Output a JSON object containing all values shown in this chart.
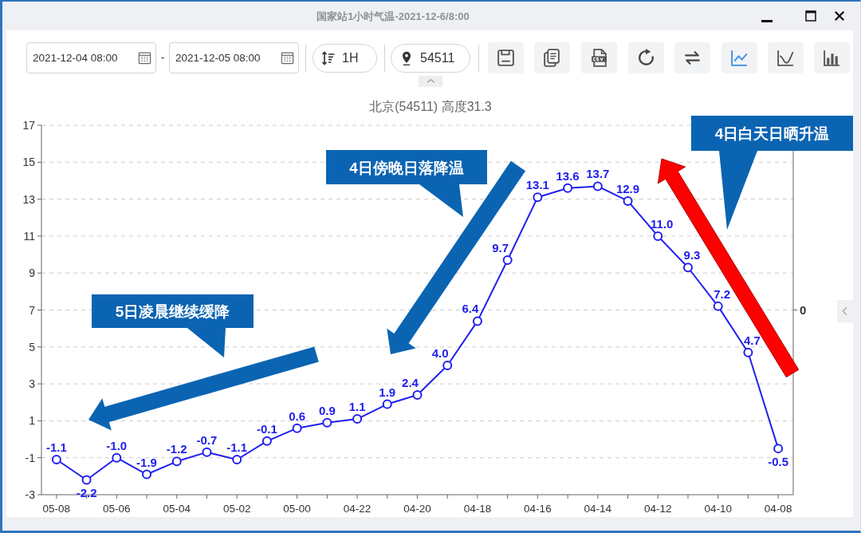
{
  "chart_data": {
    "type": "line",
    "title": "北京(54511) 高度31.3",
    "categories": [
      "05-08",
      null,
      "05-06",
      null,
      "05-04",
      null,
      "05-02",
      null,
      "05-00",
      null,
      "04-22",
      null,
      "04-20",
      null,
      "04-18",
      null,
      "04-16",
      null,
      "04-14",
      null,
      "04-12",
      null,
      "04-10",
      null,
      "04-08"
    ],
    "series": [
      {
        "color": "#2020ee",
        "values": [
          -1.1,
          -2.2,
          -1.0,
          -1.9,
          -1.2,
          -0.7,
          -1.1,
          -0.1,
          0.6,
          0.9,
          1.1,
          1.9,
          2.4,
          4.0,
          6.4,
          9.7,
          13.1,
          13.6,
          13.7,
          12.9,
          11.0,
          9.3,
          7.2,
          4.7,
          -0.5
        ],
        "value_labels": [
          "-1.1",
          "-2.2",
          "-1.0",
          "-1.9",
          "-1.2",
          "-0.7",
          "-1.1",
          "-0.1",
          "0.6",
          "0.9",
          "1.1",
          "1.9",
          "2.4",
          "4.0",
          "6.4",
          "9.7",
          "13.1",
          "13.6",
          "13.7",
          "12.9",
          "11.0",
          "9.3",
          "7.2",
          "4.7",
          "-0.5"
        ]
      }
    ],
    "ylim": [
      -3,
      17
    ],
    "yticks": [
      -3,
      -1,
      1,
      3,
      5,
      7,
      9,
      11,
      13,
      15,
      17
    ],
    "grid": "y",
    "marker": "circle",
    "line_style": "solid",
    "annotations": [
      "4日白天日晒升温",
      "4日傍晚日落降温",
      "5日凌晨继续缓降",
      "国家站1小时气温-2021-12-6/8:00",
      "2021-12-04 08:00",
      "-",
      "2021-12-05 08:00",
      "1H",
      "54511",
      "0"
    ]
  }
}
